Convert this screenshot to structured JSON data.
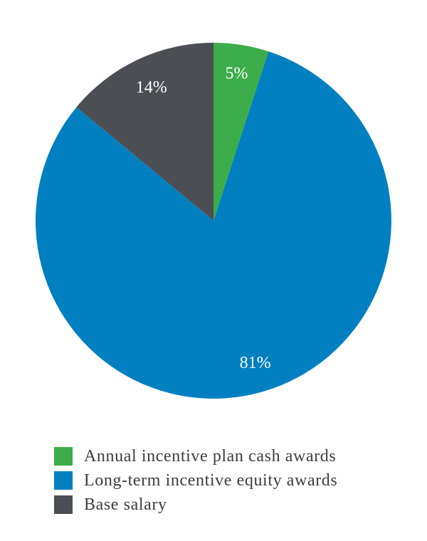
{
  "chart_data": {
    "type": "pie",
    "title": "",
    "start_angle": "12 o'clock, clockwise",
    "slices": [
      {
        "name": "Annual incentive plan cash awards",
        "value": 5,
        "label": "5%",
        "color": "#3cad4a"
      },
      {
        "name": "Long-term incentive equity awards",
        "value": 81,
        "label": "81%",
        "color": "#0080c0"
      },
      {
        "name": "Base salary",
        "value": 14,
        "label": "14%",
        "color": "#4b4f54"
      }
    ],
    "legend_position": "bottom"
  }
}
